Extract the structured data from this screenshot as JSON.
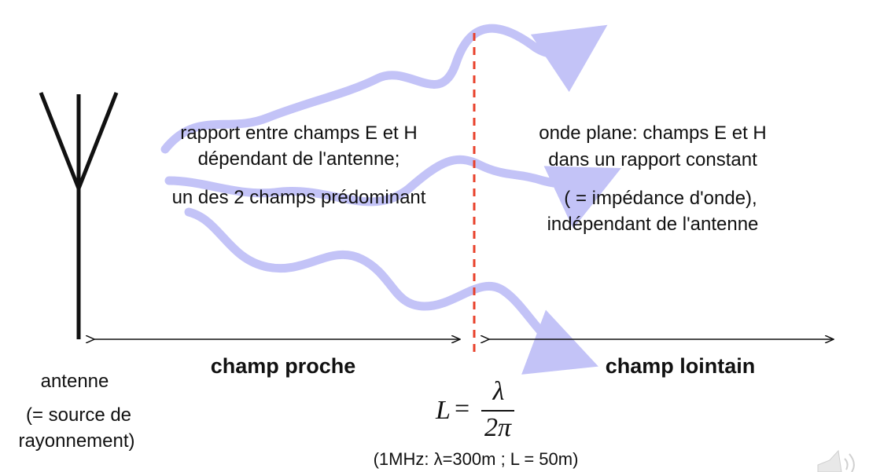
{
  "colors": {
    "wave": "#c3c3f7",
    "divider": "#e8402a",
    "ink": "#111111"
  },
  "near_field": {
    "line1": "rapport entre champs E et H",
    "line2": "dépendant de l'antenne;",
    "line3": "un des 2 champs prédominant",
    "label": "champ proche"
  },
  "far_field": {
    "line1": "onde plane: champs E et H",
    "line2": "dans un rapport constant",
    "line3": "( = impédance d'onde),",
    "line4": "indépendant de l'antenne",
    "label": "champ lointain"
  },
  "antenna": {
    "label": "antenne",
    "note1": "(= source de",
    "note2": "rayonnement)"
  },
  "formula": {
    "lhs": "L",
    "eq": "=",
    "numerator": "λ",
    "denominator": "2π",
    "example": "(1MHz: λ=300m ; L = 50m)"
  },
  "icons": {
    "speaker": "speaker-icon"
  }
}
